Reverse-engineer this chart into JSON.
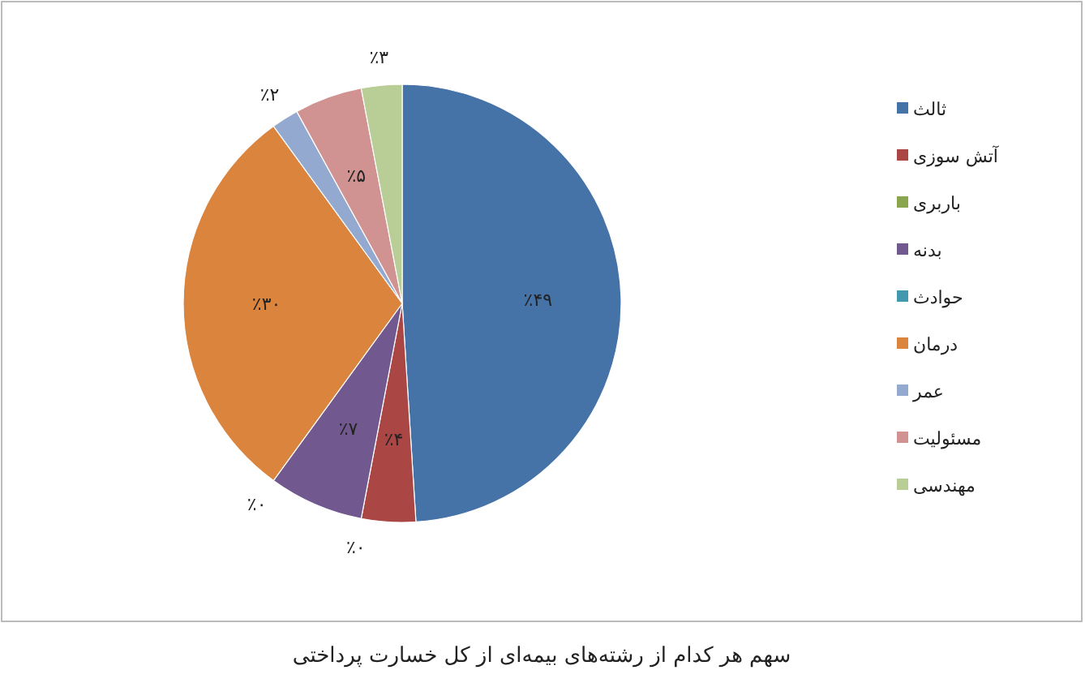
{
  "chart_data": {
    "type": "pie",
    "categories": [
      "ثالث",
      "آتش سوزی",
      "باربری",
      "بدنه",
      "حوادث",
      "درمان",
      "عمر",
      "مسئولیت",
      "مهندسی"
    ],
    "values": [
      49,
      4,
      0,
      7,
      0,
      30,
      2,
      5,
      3
    ],
    "colors": [
      "#4572a7",
      "#aa4643",
      "#89a54e",
      "#71588f",
      "#4198af",
      "#db843d",
      "#93a9cf",
      "#d19392",
      "#b9cd96"
    ],
    "value_labels": [
      "٪۴۹",
      "٪۴",
      "٪۰",
      "٪۷",
      "٪۰",
      "٪۳۰",
      "٪۲",
      "٪۵",
      "٪۳"
    ],
    "legend": "right",
    "annotations": [
      "سهم هر کدام از رشته‌های بیمه‌ای از کل خسارت پرداختی"
    ]
  }
}
